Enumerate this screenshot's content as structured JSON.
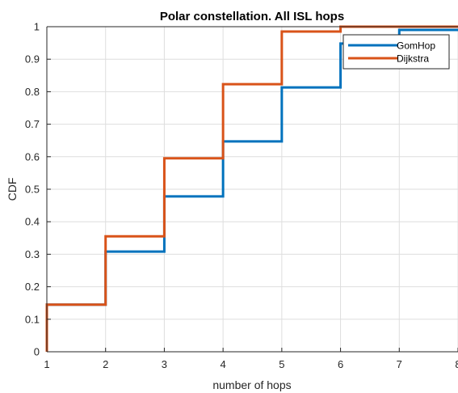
{
  "chart_data": {
    "type": "line",
    "step": true,
    "title": "Polar constellation. All ISL hops",
    "xlabel": "number of hops",
    "ylabel": "CDF",
    "xlim": [
      1,
      8
    ],
    "ylim": [
      0,
      1
    ],
    "xticks": [
      "1",
      "2",
      "3",
      "4",
      "5",
      "6",
      "7",
      "8"
    ],
    "yticks": [
      "0",
      "0.1",
      "0.2",
      "0.3",
      "0.4",
      "0.5",
      "0.6",
      "0.7",
      "0.8",
      "0.9",
      "1"
    ],
    "grid": true,
    "legend_position": "top-right",
    "series": [
      {
        "name": "GomHop",
        "color": "#0072BD",
        "x": [
          1,
          2,
          3,
          4,
          5,
          6,
          7,
          8
        ],
        "y": [
          0.145,
          0.308,
          0.478,
          0.647,
          0.813,
          0.948,
          0.99,
          0.99
        ]
      },
      {
        "name": "Dijkstra",
        "color": "#D95319",
        "x": [
          1,
          2,
          3,
          4,
          5,
          6
        ],
        "y": [
          0.145,
          0.355,
          0.595,
          0.823,
          0.985,
          1.0
        ]
      }
    ]
  }
}
